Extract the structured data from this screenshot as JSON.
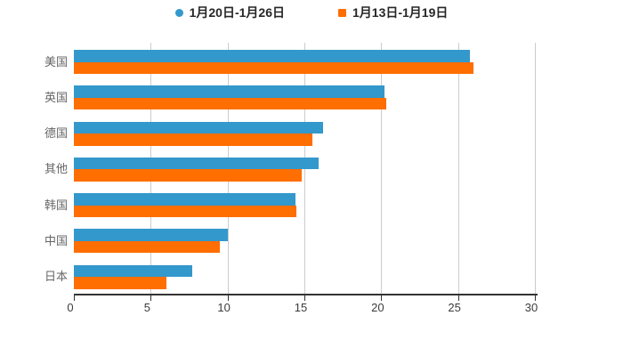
{
  "chart_data": {
    "type": "bar",
    "orientation": "horizontal",
    "title": "",
    "categories": [
      "美国",
      "英国",
      "德国",
      "其他",
      "韩国",
      "中国",
      "日本"
    ],
    "series": [
      {
        "name": "1月20日-1月26日",
        "color": "#3398cb",
        "marker": "circle",
        "values": [
          25.8,
          20.2,
          16.2,
          15.9,
          14.4,
          10.0,
          7.7
        ]
      },
      {
        "name": "1月13日-1月19日",
        "color": "#ff6e00",
        "marker": "square",
        "values": [
          26.0,
          20.3,
          15.5,
          14.8,
          14.5,
          9.5,
          6.0
        ]
      }
    ],
    "xlim": [
      0,
      30
    ],
    "xticks": [
      "0",
      "5",
      "10",
      "15",
      "20",
      "25",
      "30"
    ],
    "grid": "vertical-gridlines",
    "legend_position": "top-center"
  },
  "colors": {
    "background": "#ffffff",
    "axis": "#333333",
    "gridline": "#cccccc",
    "category_label": "#666666",
    "tick_label": "#3c3c3c",
    "legend_text": "#262626"
  }
}
